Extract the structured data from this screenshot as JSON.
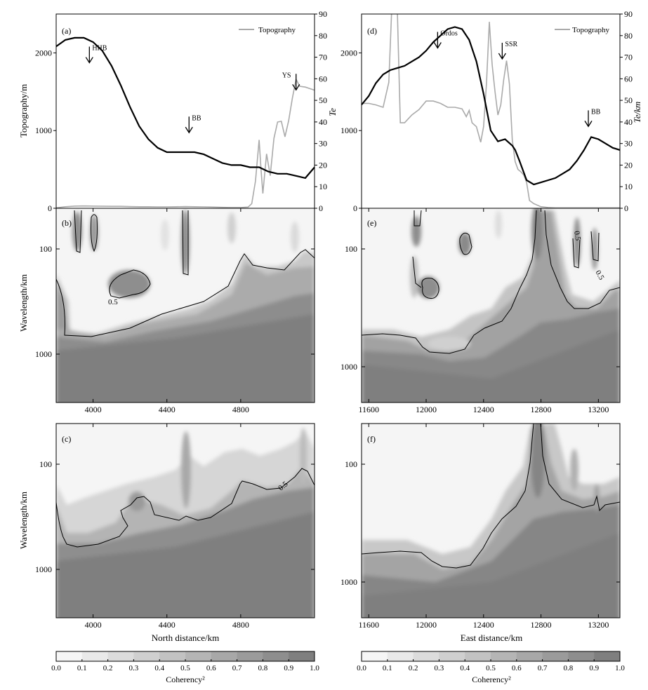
{
  "figure": {
    "legend_label": "Topography",
    "colorbar_label": "Coherency²",
    "colorbar_ticks": [
      "0.0",
      "0.1",
      "0.2",
      "0.3",
      "0.4",
      "0.5",
      "0.6",
      "0.7",
      "0.8",
      "0.9",
      "1.0"
    ],
    "colorbar_colors": [
      "#f6f6f6",
      "#e9e9e9",
      "#dcdcdc",
      "#cfcfcf",
      "#c2c2c2",
      "#b5b5b5",
      "#a8a8a8",
      "#9b9b9b",
      "#8e8e8e",
      "#7f7f7f"
    ]
  },
  "chart_data": [
    {
      "panel": "a",
      "type": "line",
      "ylabel": "Topography/m",
      "y2label": "Te",
      "x_ticks": [
        "4000",
        "4400",
        "4800"
      ],
      "y_ticks": [
        "0",
        "1000",
        "2000"
      ],
      "y2_ticks": [
        "0",
        "10",
        "20",
        "30",
        "40",
        "50",
        "60",
        "70",
        "80",
        "90"
      ],
      "xlim": [
        3800,
        5200
      ],
      "ylim": [
        0,
        2500
      ],
      "y2lim": [
        0,
        90
      ],
      "series": [
        {
          "name": "Topography",
          "axis": "left",
          "color": "#aaaaaa",
          "x": [
            3800,
            3850,
            3900,
            3950,
            4000,
            4050,
            4100,
            4150,
            4200,
            4250,
            4300,
            4350,
            4400,
            4450,
            4500,
            4550,
            4600,
            4650,
            4700,
            4750,
            4800,
            4840,
            4860,
            4880,
            4900,
            4910,
            4920,
            4940,
            4960,
            4980,
            5000,
            5020,
            5040,
            5060,
            5080,
            5100,
            5120,
            5150,
            5200
          ],
          "y": [
            5,
            20,
            28,
            30,
            28,
            26,
            25,
            25,
            22,
            20,
            20,
            18,
            18,
            20,
            22,
            20,
            18,
            15,
            12,
            10,
            10,
            15,
            60,
            350,
            880,
            500,
            190,
            700,
            420,
            900,
            1110,
            1120,
            920,
            1130,
            1420,
            1660,
            1570,
            1560,
            1520
          ]
        },
        {
          "name": "Te",
          "axis": "right",
          "color": "#000000",
          "x": [
            3800,
            3850,
            3900,
            3950,
            4000,
            4050,
            4100,
            4150,
            4200,
            4250,
            4300,
            4350,
            4400,
            4450,
            4500,
            4550,
            4600,
            4650,
            4700,
            4750,
            4800,
            4850,
            4900,
            4950,
            5000,
            5050,
            5100,
            5150,
            5200
          ],
          "y": [
            75,
            78,
            79,
            79,
            77,
            73,
            66,
            57,
            47,
            38,
            32,
            28,
            26,
            26,
            26,
            26,
            25,
            23,
            21,
            20,
            20,
            19,
            19,
            17,
            16,
            16,
            15,
            14,
            19
          ]
        }
      ],
      "annotations": [
        {
          "label": "HHB",
          "x": 3980,
          "y": 2080
        },
        {
          "label": "BB",
          "x": 4520,
          "y": 1180
        },
        {
          "label": "YS",
          "x": 5100,
          "y": 1730
        }
      ]
    },
    {
      "panel": "b",
      "type": "heatmap",
      "ylabel": "Wavelength/km",
      "x_ticks": [
        "4000",
        "4400",
        "4800"
      ],
      "y_ticks": [
        "100",
        "1000"
      ],
      "contour_label": "0.5",
      "colorbar_range": [
        0,
        1
      ]
    },
    {
      "panel": "c",
      "type": "heatmap",
      "xlabel": "North distance/km",
      "ylabel": "Wavelength/km",
      "x_ticks": [
        "4000",
        "4400",
        "4800"
      ],
      "y_ticks": [
        "100",
        "1000"
      ],
      "contour_label": "0.5",
      "colorbar_range": [
        0,
        1
      ]
    },
    {
      "panel": "d",
      "type": "line",
      "y2label": "Te/km",
      "x_ticks": [
        "11600",
        "12000",
        "12400",
        "12800",
        "13200"
      ],
      "y_ticks": [
        "0",
        "1000",
        "2000"
      ],
      "y2_ticks": [
        "0",
        "10",
        "20",
        "30",
        "40",
        "50",
        "60",
        "70",
        "80",
        "90"
      ],
      "xlim": [
        11550,
        13350
      ],
      "ylim": [
        0,
        2500
      ],
      "y2lim": [
        0,
        90
      ],
      "series": [
        {
          "name": "Topography",
          "axis": "left",
          "color": "#aaaaaa",
          "x": [
            11550,
            11600,
            11650,
            11700,
            11740,
            11760,
            11780,
            11800,
            11820,
            11850,
            11900,
            11950,
            12000,
            12050,
            12100,
            12150,
            12200,
            12250,
            12280,
            12300,
            12320,
            12350,
            12380,
            12400,
            12420,
            12440,
            12460,
            12480,
            12500,
            12520,
            12540,
            12560,
            12580,
            12600,
            12620,
            12640,
            12660,
            12680,
            12700,
            12720,
            12750,
            12800,
            12850,
            12900,
            13000,
            13100,
            13200,
            13350
          ],
          "y": [
            1350,
            1350,
            1330,
            1300,
            1620,
            2550,
            3600,
            2500,
            1100,
            1100,
            1200,
            1270,
            1380,
            1380,
            1350,
            1300,
            1300,
            1280,
            1180,
            1260,
            1100,
            1050,
            850,
            1050,
            1600,
            2400,
            1850,
            1500,
            1200,
            1330,
            1650,
            1900,
            1600,
            880,
            600,
            500,
            470,
            430,
            330,
            100,
            60,
            20,
            10,
            5,
            5,
            5,
            5,
            5
          ]
        },
        {
          "name": "Te",
          "axis": "right",
          "color": "#000000",
          "x": [
            11550,
            11600,
            11650,
            11700,
            11750,
            11800,
            11850,
            11900,
            11950,
            12000,
            12050,
            12100,
            12150,
            12200,
            12250,
            12300,
            12350,
            12400,
            12450,
            12500,
            12550,
            12600,
            12620,
            12650,
            12700,
            12750,
            12800,
            12850,
            12900,
            12950,
            13000,
            13050,
            13100,
            13150,
            13200,
            13250,
            13300,
            13350
          ],
          "y": [
            48,
            52,
            58,
            62,
            64,
            65,
            66,
            68,
            70,
            73,
            77,
            80,
            83,
            84,
            83,
            78,
            68,
            53,
            36,
            31,
            32,
            29,
            27,
            22,
            13,
            11,
            12,
            13,
            14,
            16,
            18,
            22,
            27,
            33,
            32,
            30,
            28,
            27
          ]
        }
      ],
      "annotations": [
        {
          "label": "Ordos",
          "x": 12080,
          "y": 2270
        },
        {
          "label": "SSR",
          "x": 12530,
          "y": 2130
        },
        {
          "label": "BB",
          "x": 13130,
          "y": 1260
        }
      ]
    },
    {
      "panel": "e",
      "type": "heatmap",
      "x_ticks": [
        "11600",
        "12000",
        "12400",
        "12800",
        "13200"
      ],
      "y_ticks": [
        "100",
        "1000"
      ],
      "contour_label": "0.5",
      "colorbar_range": [
        0,
        1
      ]
    },
    {
      "panel": "f",
      "type": "heatmap",
      "xlabel": "East distance/km",
      "x_ticks": [
        "11600",
        "12000",
        "12400",
        "12800",
        "13200"
      ],
      "y_ticks": [
        "100",
        "1000"
      ],
      "colorbar_range": [
        0,
        1
      ]
    }
  ]
}
